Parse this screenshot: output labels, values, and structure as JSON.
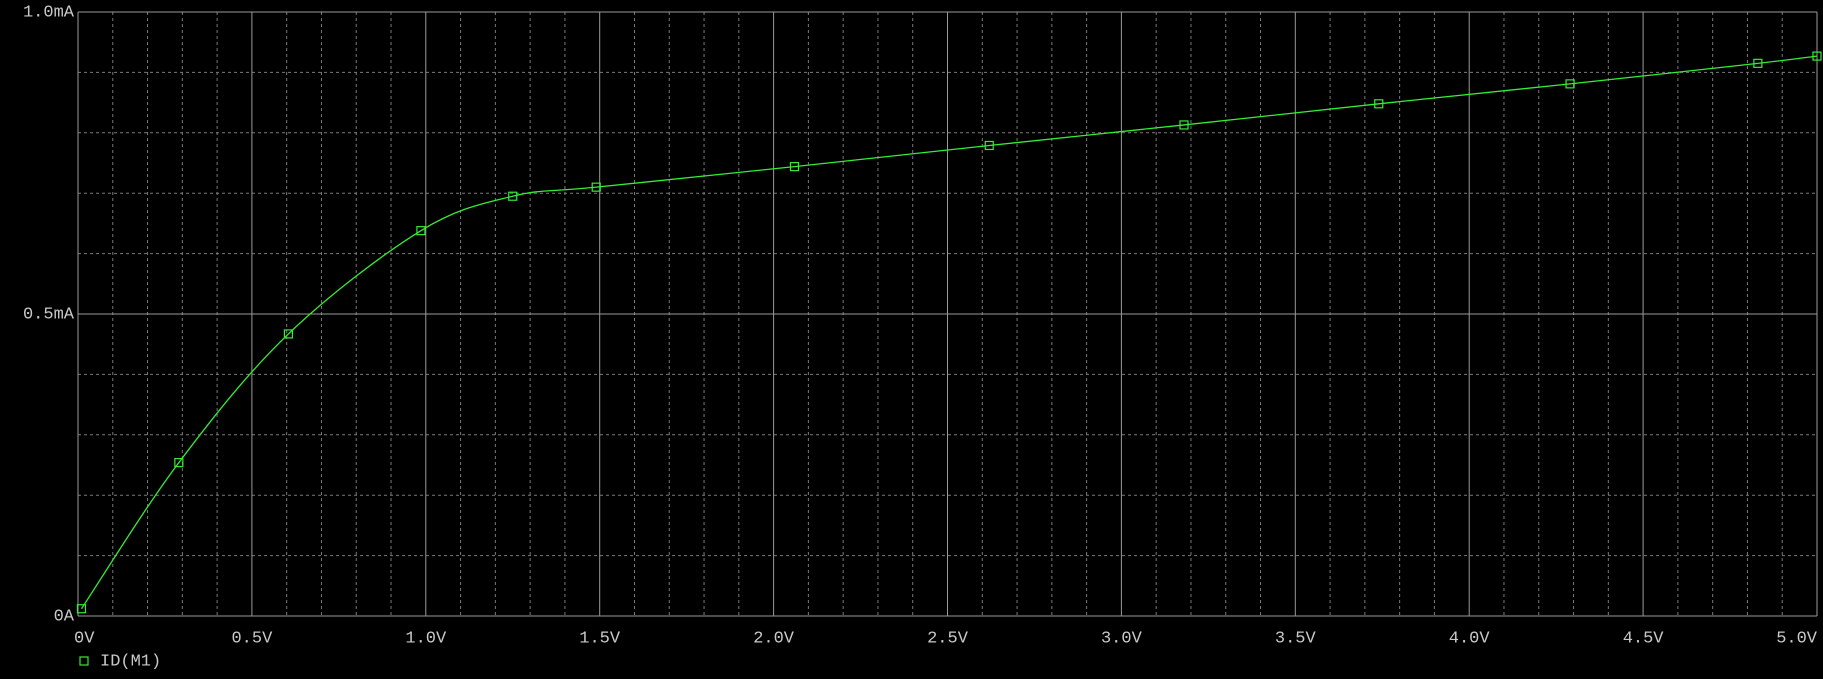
{
  "chart_data": {
    "type": "line",
    "x": [
      0.01,
      0.29,
      0.605,
      0.986,
      1.25,
      1.49,
      2.06,
      2.62,
      3.18,
      3.74,
      4.29,
      4.83,
      5.0
    ],
    "series": [
      {
        "name": "ID(M1)",
        "color": "#33ee33",
        "values": [
          0.012,
          0.254,
          0.467,
          0.638,
          0.695,
          0.71,
          0.744,
          0.779,
          0.813,
          0.848,
          0.881,
          0.915,
          0.927
        ]
      }
    ],
    "xlim": [
      0,
      5
    ],
    "ylim": [
      0,
      1.0
    ],
    "xticks": [
      {
        "value": 0,
        "label": "0V"
      },
      {
        "value": 0.5,
        "label": "0.5V"
      },
      {
        "value": 1.0,
        "label": "1.0V"
      },
      {
        "value": 1.5,
        "label": "1.5V"
      },
      {
        "value": 2.0,
        "label": "2.0V"
      },
      {
        "value": 2.5,
        "label": "2.5V"
      },
      {
        "value": 3.0,
        "label": "3.0V"
      },
      {
        "value": 3.5,
        "label": "3.5V"
      },
      {
        "value": 4.0,
        "label": "4.0V"
      },
      {
        "value": 4.5,
        "label": "4.5V"
      },
      {
        "value": 5.0,
        "label": "5.0V"
      }
    ],
    "yticks": [
      {
        "value": 0,
        "label": "0A"
      },
      {
        "value": 0.5,
        "label": "0.5mA"
      },
      {
        "value": 1.0,
        "label": "1.0mA"
      }
    ],
    "x_minor_ticks": [
      0.1,
      0.2,
      0.3,
      0.4,
      0.6,
      0.7,
      0.8,
      0.9,
      1.1,
      1.2,
      1.3,
      1.4,
      1.6,
      1.7,
      1.8,
      1.9,
      2.1,
      2.2,
      2.3,
      2.4,
      2.6,
      2.7,
      2.8,
      2.9,
      3.1,
      3.2,
      3.3,
      3.4,
      3.6,
      3.7,
      3.8,
      3.9,
      4.1,
      4.2,
      4.3,
      4.4,
      4.6,
      4.7,
      4.8,
      4.9
    ],
    "y_minor_ticks": [
      0.1,
      0.2,
      0.3,
      0.4,
      0.6,
      0.7,
      0.8,
      0.9
    ],
    "grid": true,
    "markers": true
  }
}
